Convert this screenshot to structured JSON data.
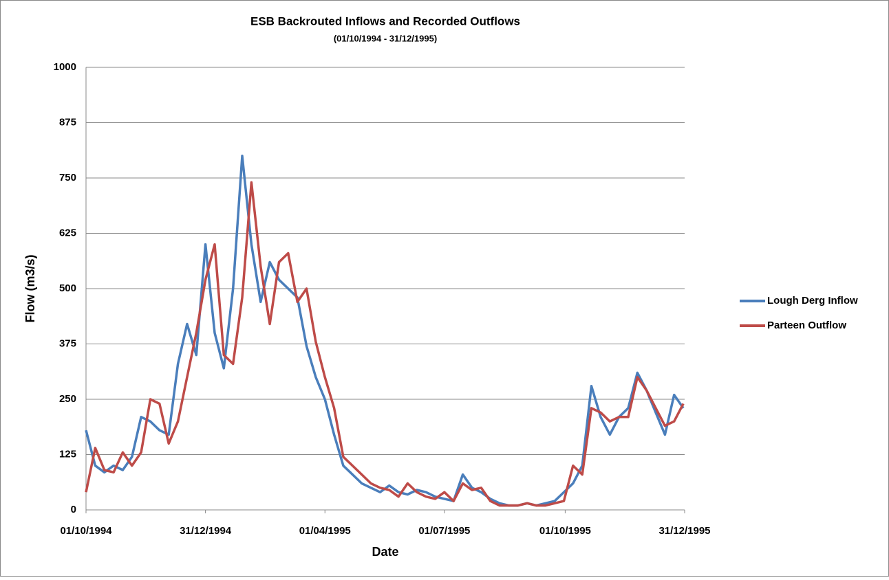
{
  "chart_data": {
    "type": "line",
    "title": "ESB Backrouted Inflows and Recorded Outflows",
    "subtitle": "(01/10/1994 - 31/12/1995)",
    "x_label": "Date",
    "y_label": "Flow (m3/s)",
    "x": [
      "01/10/1994",
      "08/10/1994",
      "15/10/1994",
      "22/10/1994",
      "29/10/1994",
      "05/11/1994",
      "12/11/1994",
      "19/11/1994",
      "26/11/1994",
      "03/12/1994",
      "10/12/1994",
      "17/12/1994",
      "24/12/1994",
      "31/12/1994",
      "07/01/1995",
      "14/01/1995",
      "21/01/1995",
      "28/01/1995",
      "04/02/1995",
      "11/02/1995",
      "18/02/1995",
      "25/02/1995",
      "04/03/1995",
      "11/03/1995",
      "18/03/1995",
      "25/03/1995",
      "01/04/1995",
      "08/04/1995",
      "15/04/1995",
      "22/04/1995",
      "29/04/1995",
      "06/05/1995",
      "13/05/1995",
      "20/05/1995",
      "27/05/1995",
      "03/06/1995",
      "10/06/1995",
      "17/06/1995",
      "24/06/1995",
      "01/07/1995",
      "08/07/1995",
      "15/07/1995",
      "22/07/1995",
      "29/07/1995",
      "05/08/1995",
      "12/08/1995",
      "19/08/1995",
      "26/08/1995",
      "02/09/1995",
      "09/09/1995",
      "16/09/1995",
      "23/09/1995",
      "30/09/1995",
      "07/10/1995",
      "14/10/1995",
      "21/10/1995",
      "28/10/1995",
      "04/11/1995",
      "11/11/1995",
      "18/11/1995",
      "25/11/1995",
      "02/12/1995",
      "09/12/1995",
      "16/12/1995",
      "23/12/1995",
      "30/12/1995"
    ],
    "series": [
      {
        "name": "Lough Derg Inflow",
        "color": "#4a7ebb",
        "values": [
          180,
          100,
          85,
          100,
          90,
          120,
          210,
          200,
          180,
          170,
          330,
          420,
          350,
          600,
          400,
          320,
          500,
          800,
          600,
          470,
          560,
          520,
          500,
          480,
          370,
          300,
          250,
          170,
          100,
          80,
          60,
          50,
          40,
          55,
          40,
          35,
          45,
          40,
          30,
          25,
          20,
          80,
          50,
          40,
          25,
          15,
          10,
          10,
          15,
          10,
          15,
          20,
          40,
          60,
          100,
          280,
          210,
          170,
          210,
          230,
          310,
          270,
          220,
          170,
          260,
          230
        ]
      },
      {
        "name": "Parteen Outflow",
        "color": "#be4b48",
        "values": [
          40,
          140,
          90,
          85,
          130,
          100,
          130,
          250,
          240,
          150,
          200,
          300,
          400,
          520,
          600,
          350,
          330,
          480,
          740,
          550,
          420,
          560,
          580,
          470,
          500,
          380,
          300,
          230,
          120,
          100,
          80,
          60,
          50,
          45,
          30,
          60,
          40,
          30,
          25,
          40,
          20,
          60,
          45,
          50,
          20,
          10,
          10,
          10,
          15,
          10,
          10,
          15,
          20,
          100,
          80,
          230,
          220,
          200,
          210,
          210,
          300,
          270,
          230,
          190,
          200,
          240
        ]
      }
    ],
    "xlim": [
      "01/10/1994",
      "31/12/1995"
    ],
    "xticks": [
      "01/10/1994",
      "31/12/1994",
      "01/04/1995",
      "01/07/1995",
      "01/10/1995",
      "31/12/1995"
    ],
    "ylim": [
      0,
      1000
    ],
    "yticks": [
      0,
      125,
      250,
      375,
      500,
      625,
      750,
      875,
      1000
    ],
    "grid": true,
    "legend": "right"
  }
}
